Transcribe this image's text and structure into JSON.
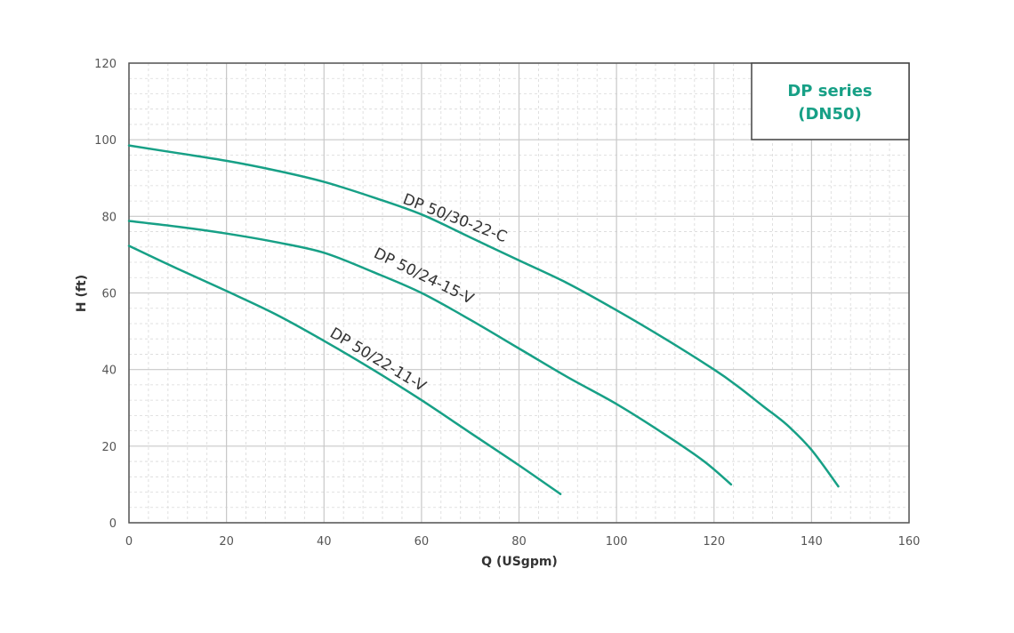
{
  "chart_data": {
    "type": "line",
    "title_line1": "DP series",
    "title_line2": "(DN50)",
    "xlabel": "Q (USgpm)",
    "ylabel": "H (ft)",
    "xlim": [
      0,
      160
    ],
    "ylim": [
      0,
      120
    ],
    "x_ticks": [
      "0",
      "20",
      "40",
      "60",
      "80",
      "100",
      "120",
      "140",
      "160"
    ],
    "y_ticks": [
      "0",
      "20",
      "40",
      "60",
      "80",
      "100",
      "120"
    ],
    "grid": true,
    "colors": {
      "curve": "#17a086",
      "title": "#17a086",
      "major_grid": "#c8c8c8",
      "minor_grid": "#d9d9d9",
      "frame": "#555555"
    },
    "series": [
      {
        "name": "DP 50/30-22-C",
        "points": [
          [
            0,
            98.5
          ],
          [
            10,
            96.5
          ],
          [
            20,
            94.5
          ],
          [
            30,
            92
          ],
          [
            40,
            89
          ],
          [
            50,
            85
          ],
          [
            60,
            80.5
          ],
          [
            70,
            74.5
          ],
          [
            80,
            68.5
          ],
          [
            90,
            62.5
          ],
          [
            100,
            55.5
          ],
          [
            110,
            48
          ],
          [
            120,
            40
          ],
          [
            125,
            35.5
          ],
          [
            130,
            30.5
          ],
          [
            135,
            25.5
          ],
          [
            140,
            19
          ],
          [
            145.5,
            9.5
          ]
        ]
      },
      {
        "name": "DP 50/24-15-V",
        "points": [
          [
            0,
            78.8
          ],
          [
            10,
            77.3
          ],
          [
            20,
            75.5
          ],
          [
            30,
            73.3
          ],
          [
            40,
            70.5
          ],
          [
            50,
            65.5
          ],
          [
            60,
            60
          ],
          [
            70,
            53
          ],
          [
            80,
            45.5
          ],
          [
            90,
            38
          ],
          [
            100,
            31
          ],
          [
            110,
            23
          ],
          [
            118,
            16
          ],
          [
            123.5,
            10
          ]
        ]
      },
      {
        "name": "DP 50/22-11-V",
        "points": [
          [
            0,
            72.3
          ],
          [
            10,
            66.3
          ],
          [
            20,
            60.5
          ],
          [
            30,
            54.5
          ],
          [
            40,
            47.5
          ],
          [
            50,
            40
          ],
          [
            60,
            32
          ],
          [
            70,
            23.5
          ],
          [
            80,
            15
          ],
          [
            88.5,
            7.5
          ]
        ]
      }
    ],
    "labels": [
      {
        "text": "DP 50/30-22-C",
        "x": 56,
        "y": 83.5,
        "angle": 21
      },
      {
        "text": "DP 50/24-15-V",
        "x": 50,
        "y": 69.5,
        "angle": 26
      },
      {
        "text": "DP 50/22-11-V",
        "x": 41,
        "y": 48.8,
        "angle": 31
      }
    ]
  }
}
